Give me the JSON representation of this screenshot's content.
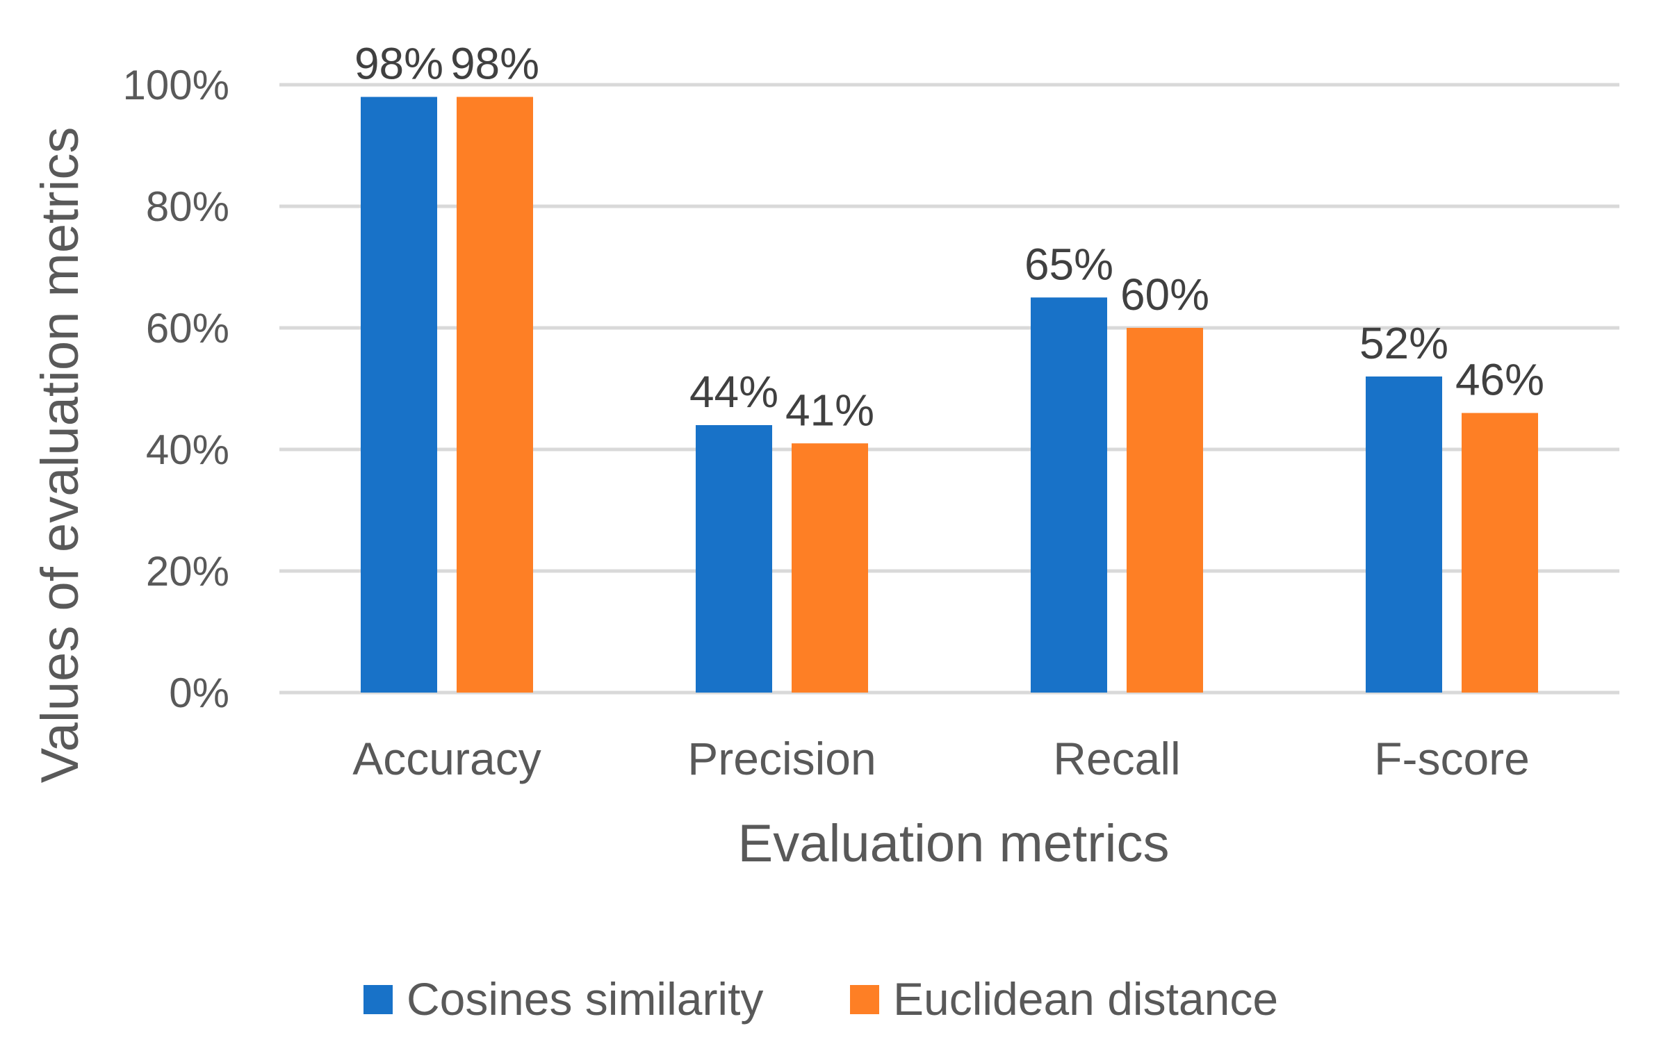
{
  "chart_data": {
    "type": "bar",
    "title": "",
    "xlabel": "Evaluation metrics",
    "ylabel": "Values of evaluation metrics",
    "categories": [
      "Accuracy",
      "Precision",
      "Recall",
      "F-score"
    ],
    "series": [
      {
        "name": "Cosines similarity",
        "color": "#1872c8",
        "values": [
          98,
          44,
          65,
          52
        ],
        "labels": [
          "98%",
          "44%",
          "65%",
          "52%"
        ]
      },
      {
        "name": "Euclidean distance",
        "color": "#fe7f25",
        "values": [
          98,
          41,
          60,
          46
        ],
        "labels": [
          "98%",
          "41%",
          "60%",
          "46%"
        ]
      }
    ],
    "ylim": [
      0,
      100
    ],
    "yticks": [
      0,
      20,
      40,
      60,
      80,
      100
    ],
    "ytick_labels": [
      "0%",
      "20%",
      "40%",
      "60%",
      "80%",
      "100%"
    ],
    "grid": true,
    "legend_position": "bottom"
  }
}
